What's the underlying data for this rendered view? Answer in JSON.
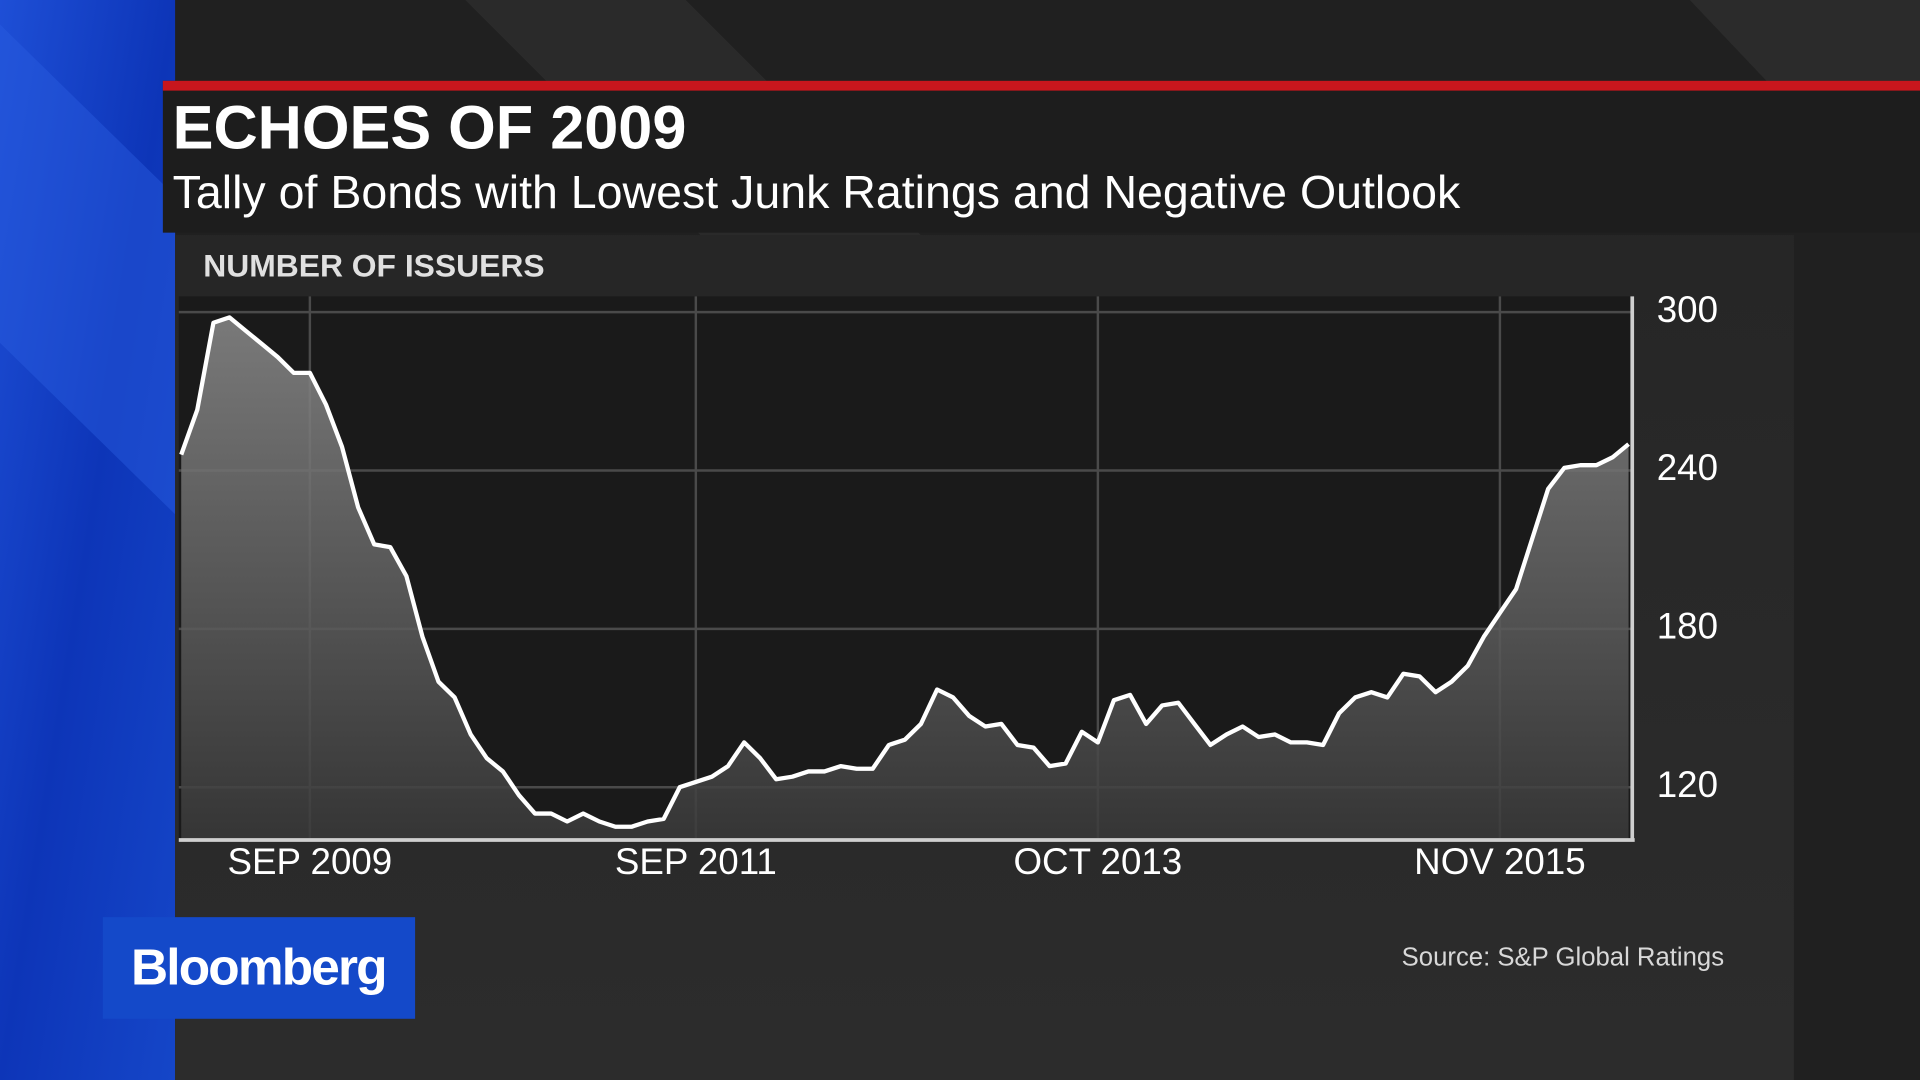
{
  "logo": "Bloomberg",
  "chart_data": {
    "type": "area",
    "title": "ECHOES OF 2009",
    "subtitle": "Tally of Bonds with Lowest Junk Ratings and Negative Outlook",
    "y_label": "NUMBER OF ISSUERS",
    "source": "Source: S&P Global Ratings",
    "color": "#ffffff",
    "x": [
      "2009-01",
      "2009-02",
      "2009-03",
      "2009-04",
      "2009-05",
      "2009-06",
      "2009-07",
      "2009-08",
      "2009-09",
      "2009-10",
      "2009-11",
      "2009-12",
      "2010-01",
      "2010-02",
      "2010-03",
      "2010-04",
      "2010-05",
      "2010-06",
      "2010-07",
      "2010-08",
      "2010-09",
      "2010-10",
      "2010-11",
      "2010-12",
      "2011-01",
      "2011-02",
      "2011-03",
      "2011-04",
      "2011-05",
      "2011-06",
      "2011-07",
      "2011-08",
      "2011-09",
      "2011-10",
      "2011-11",
      "2011-12",
      "2012-01",
      "2012-02",
      "2012-03",
      "2012-04",
      "2012-05",
      "2012-06",
      "2012-07",
      "2012-08",
      "2012-09",
      "2012-10",
      "2012-11",
      "2012-12",
      "2013-01",
      "2013-02",
      "2013-03",
      "2013-04",
      "2013-05",
      "2013-06",
      "2013-07",
      "2013-08",
      "2013-09",
      "2013-10",
      "2013-11",
      "2013-12",
      "2014-01",
      "2014-02",
      "2014-03",
      "2014-04",
      "2014-05",
      "2014-06",
      "2014-07",
      "2014-08",
      "2014-09",
      "2014-10",
      "2014-11",
      "2014-12",
      "2015-01",
      "2015-02",
      "2015-03",
      "2015-04",
      "2015-05",
      "2015-06",
      "2015-07",
      "2015-08",
      "2015-09",
      "2015-10",
      "2015-11",
      "2015-12",
      "2016-01",
      "2016-02",
      "2016-03",
      "2016-04",
      "2016-05",
      "2016-06",
      "2016-07"
    ],
    "values": [
      246,
      263,
      296,
      298,
      293,
      288,
      283,
      277,
      277,
      265,
      249,
      226,
      212,
      211,
      200,
      177,
      160,
      154,
      140,
      131,
      126,
      117,
      110,
      110,
      107,
      110,
      107,
      105,
      105,
      107,
      108,
      120,
      122,
      124,
      128,
      137,
      131,
      123,
      124,
      126,
      126,
      128,
      127,
      127,
      136,
      138,
      144,
      157,
      154,
      147,
      143,
      144,
      136,
      135,
      128,
      129,
      141,
      137,
      153,
      155,
      144,
      151,
      152,
      144,
      136,
      140,
      143,
      139,
      140,
      137,
      137,
      136,
      148,
      154,
      156,
      154,
      163,
      162,
      156,
      160,
      166,
      177,
      186,
      195,
      214,
      233,
      241,
      242,
      242,
      245,
      250
    ],
    "xlim": [
      "2009-01",
      "2016-07"
    ],
    "xticks": [
      {
        "value": "2009-09",
        "label": "SEP 2009"
      },
      {
        "value": "2011-09",
        "label": "SEP 2011"
      },
      {
        "value": "2013-10",
        "label": "OCT 2013"
      },
      {
        "value": "2015-11",
        "label": "NOV 2015"
      }
    ],
    "ylim": [
      100,
      306
    ],
    "yticks": [
      300,
      240,
      180,
      120
    ],
    "grid": true
  }
}
